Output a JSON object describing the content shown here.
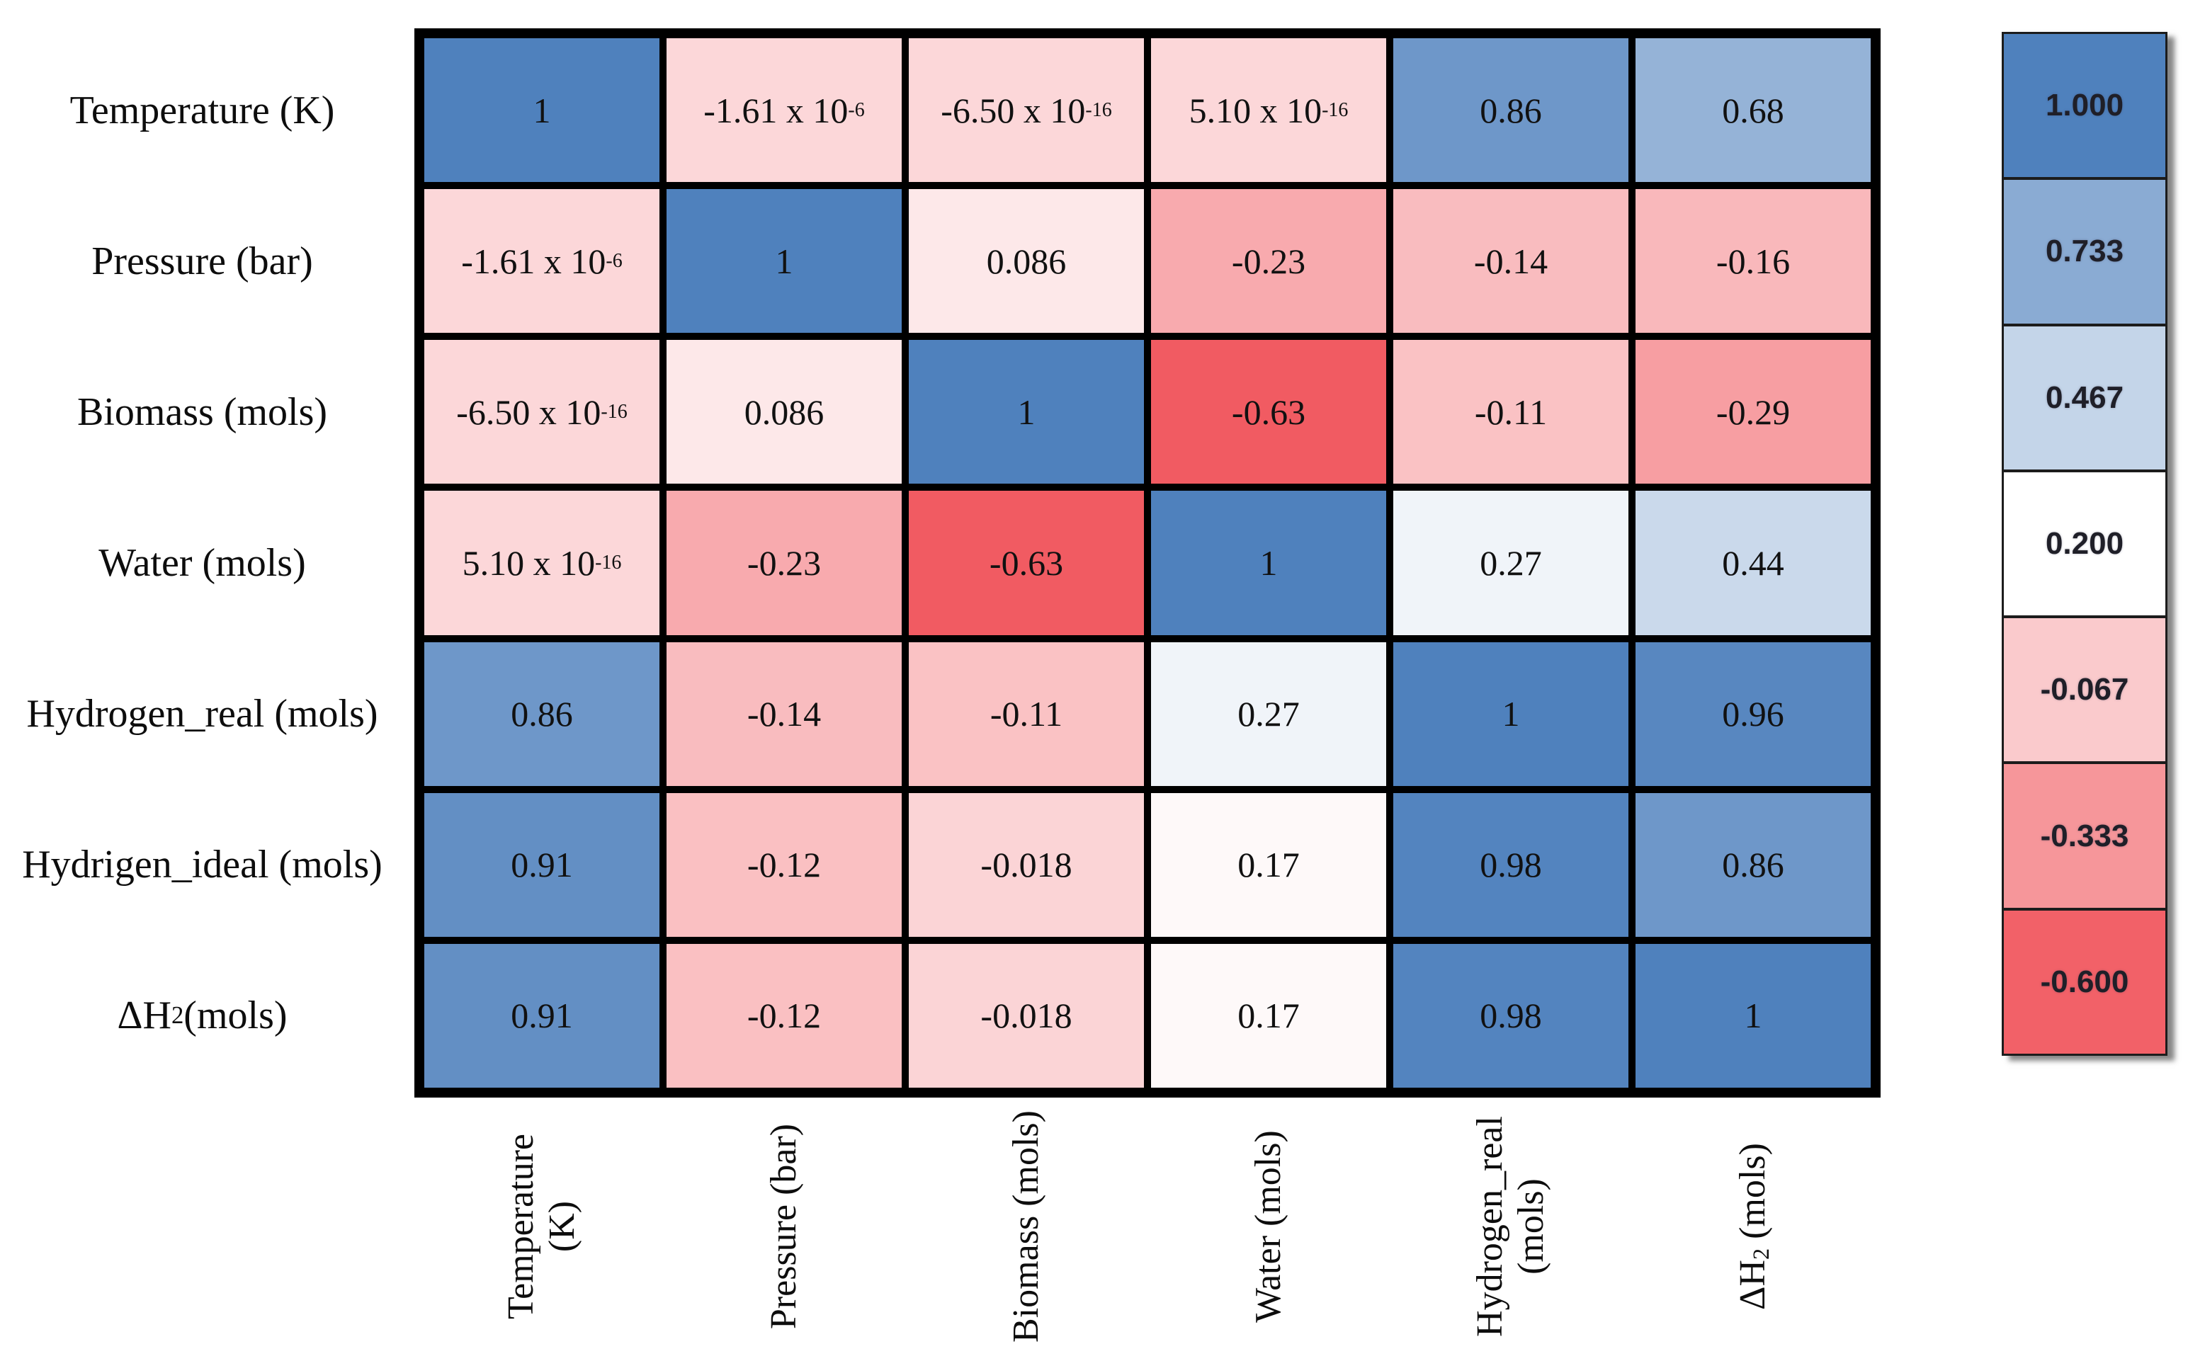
{
  "chart_data": {
    "type": "heatmap",
    "title": "",
    "row_labels": [
      "Temperature (K)",
      "Pressure (bar)",
      "Biomass (mols)",
      "Water (mols)",
      "Hydrogen_real (mols)",
      "Hydrigen_ideal (mols)",
      [
        "ΔH",
        {
          "t": "2",
          "sub": true
        },
        " (mols)"
      ]
    ],
    "col_labels": [
      [
        "Temperature",
        "(K)"
      ],
      [
        "Pressure (bar)"
      ],
      [
        "Biomass (mols)"
      ],
      [
        "Water (mols)"
      ],
      [
        "Hydrogen_real",
        "(mols)"
      ],
      [
        [
          "ΔH",
          {
            "t": "2",
            "sub": true
          },
          " (mols)"
        ]
      ]
    ],
    "cells": [
      [
        {
          "v": 1,
          "s": "1"
        },
        {
          "v": -1.61e-06,
          "s": [
            "-1.61 x 10",
            {
              "t": "-6",
              "sup": true
            }
          ]
        },
        {
          "v": -6.5e-16,
          "s": [
            "-6.50 x 10",
            {
              "t": "-16",
              "sup": true
            }
          ]
        },
        {
          "v": 5.1e-16,
          "s": [
            "5.10 x 10",
            {
              "t": "-16",
              "sup": true
            }
          ]
        },
        {
          "v": 0.86,
          "s": "0.86"
        },
        {
          "v": 0.68,
          "s": "0.68"
        }
      ],
      [
        {
          "v": -1.61e-06,
          "s": [
            "-1.61 x 10",
            {
              "t": "-6",
              "sup": true
            }
          ]
        },
        {
          "v": 1,
          "s": "1"
        },
        {
          "v": 0.086,
          "s": "0.086"
        },
        {
          "v": -0.23,
          "s": "-0.23"
        },
        {
          "v": -0.14,
          "s": "-0.14"
        },
        {
          "v": -0.16,
          "s": "-0.16"
        }
      ],
      [
        {
          "v": -6.5e-16,
          "s": [
            "-6.50 x 10",
            {
              "t": "-16",
              "sup": true
            }
          ]
        },
        {
          "v": 0.086,
          "s": "0.086"
        },
        {
          "v": 1,
          "s": "1"
        },
        {
          "v": -0.63,
          "s": "-0.63"
        },
        {
          "v": -0.11,
          "s": "-0.11"
        },
        {
          "v": -0.29,
          "s": "-0.29"
        }
      ],
      [
        {
          "v": 5.1e-16,
          "s": [
            "5.10 x 10",
            {
              "t": "-16",
              "sup": true
            }
          ]
        },
        {
          "v": -0.23,
          "s": "-0.23"
        },
        {
          "v": -0.63,
          "s": "-0.63"
        },
        {
          "v": 1,
          "s": "1"
        },
        {
          "v": 0.27,
          "s": "0.27"
        },
        {
          "v": 0.44,
          "s": "0.44"
        }
      ],
      [
        {
          "v": 0.86,
          "s": "0.86"
        },
        {
          "v": -0.14,
          "s": "-0.14"
        },
        {
          "v": -0.11,
          "s": "-0.11"
        },
        {
          "v": 0.27,
          "s": "0.27"
        },
        {
          "v": 1,
          "s": "1"
        },
        {
          "v": 0.96,
          "s": "0.96"
        }
      ],
      [
        {
          "v": 0.91,
          "s": "0.91"
        },
        {
          "v": -0.12,
          "s": "-0.12"
        },
        {
          "v": -0.018,
          "s": "-0.018"
        },
        {
          "v": 0.17,
          "s": "0.17"
        },
        {
          "v": 0.98,
          "s": "0.98"
        },
        {
          "v": 0.86,
          "s": "0.86"
        }
      ],
      [
        {
          "v": 0.91,
          "s": "0.91"
        },
        {
          "v": -0.12,
          "s": "-0.12"
        },
        {
          "v": -0.018,
          "s": "-0.018"
        },
        {
          "v": 0.17,
          "s": "0.17"
        },
        {
          "v": 0.98,
          "s": "0.98"
        },
        {
          "v": 1,
          "s": "1"
        }
      ]
    ],
    "legend": [
      {
        "v": 1.0,
        "label": "1.000"
      },
      {
        "v": 0.733,
        "label": "0.733"
      },
      {
        "v": 0.467,
        "label": "0.467"
      },
      {
        "v": 0.2,
        "label": "0.200"
      },
      {
        "v": -0.067,
        "label": "-0.067"
      },
      {
        "v": -0.333,
        "label": "-0.333"
      },
      {
        "v": -0.6,
        "label": "-0.600"
      }
    ],
    "colorscale": {
      "min": -0.63,
      "mid": 0.2,
      "max": 1.0,
      "min_color": "#f15b62",
      "mid_color": "#ffffff",
      "max_color": "#4f81bd"
    },
    "grid_color": "#000000",
    "background": "#ffffff",
    "legend_position": "right",
    "grid": true
  }
}
